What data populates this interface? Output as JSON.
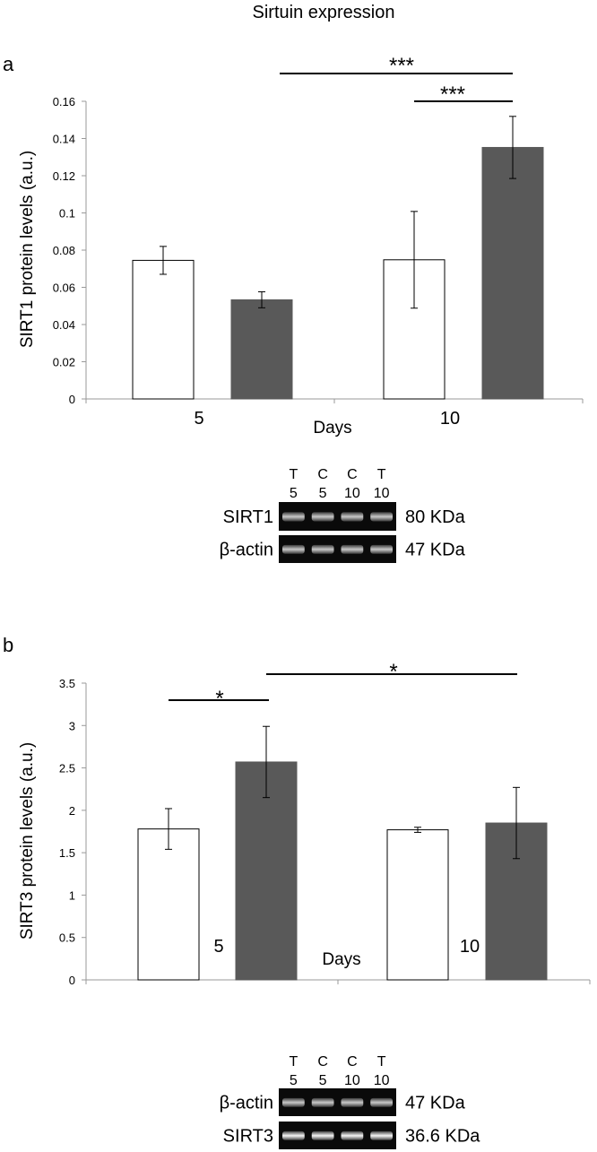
{
  "figure_title": "Sirtuin expression",
  "chart_data": [
    {
      "type": "bar",
      "panel": "a",
      "categories": [
        "5",
        "10"
      ],
      "xlabel": "Days",
      "ylabel": "SIRT1 protein levels (a.u.)",
      "ylim": [
        0,
        0.16
      ],
      "yticks": [
        0,
        0.02,
        0.04,
        0.06,
        0.08,
        0.1,
        0.12,
        0.14,
        0.16
      ],
      "ytick_labels": [
        "0",
        "0.02",
        "0.04",
        "0.06",
        "0.08",
        "0.1",
        "0.12",
        "0.14",
        "0.16"
      ],
      "series": [
        {
          "name": "white",
          "color": "#ffffff",
          "values": [
            0.0745,
            0.0748
          ],
          "errors": [
            0.0075,
            0.026
          ]
        },
        {
          "name": "dark",
          "color": "#595959",
          "values": [
            0.0533,
            0.1352
          ],
          "errors": [
            0.0043,
            0.0167
          ]
        }
      ],
      "significance": [
        {
          "label": "***",
          "from": "dark-5",
          "to": "dark-10"
        },
        {
          "label": "***",
          "from": "white-10",
          "to": "dark-10"
        }
      ],
      "blot": {
        "lanes": [
          {
            "top": "T",
            "bottom": "5"
          },
          {
            "top": "C",
            "bottom": "5"
          },
          {
            "top": "C",
            "bottom": "10"
          },
          {
            "top": "T",
            "bottom": "10"
          }
        ],
        "rows": [
          {
            "name": "SIRT1",
            "size": "80 KDa"
          },
          {
            "name": "β-actin",
            "size": "47 KDa"
          }
        ]
      }
    },
    {
      "type": "bar",
      "panel": "b",
      "categories": [
        "5",
        "10"
      ],
      "xlabel": "Days",
      "ylabel": "SIRT3 protein levels (a.u.)",
      "ylim": [
        0,
        3.5
      ],
      "yticks": [
        0,
        0.5,
        1,
        1.5,
        2,
        2.5,
        3,
        3.5
      ],
      "ytick_labels": [
        "0",
        "0.5",
        "1",
        "1.5",
        "2",
        "2.5",
        "3",
        "3.5"
      ],
      "series": [
        {
          "name": "white",
          "color": "#ffffff",
          "values": [
            1.78,
            1.77
          ],
          "errors": [
            0.24,
            0.03
          ]
        },
        {
          "name": "dark",
          "color": "#595959",
          "values": [
            2.57,
            1.85
          ],
          "errors": [
            0.42,
            0.42
          ]
        }
      ],
      "significance": [
        {
          "label": "*",
          "from": "white-5",
          "to": "dark-5"
        },
        {
          "label": "*",
          "from": "dark-5",
          "to": "dark-10"
        }
      ],
      "blot": {
        "lanes": [
          {
            "top": "T",
            "bottom": "5"
          },
          {
            "top": "C",
            "bottom": "5"
          },
          {
            "top": "C",
            "bottom": "10"
          },
          {
            "top": "T",
            "bottom": "10"
          }
        ],
        "rows": [
          {
            "name": "β-actin",
            "size": "47 KDa"
          },
          {
            "name": "SIRT3",
            "size": "36.6 KDa"
          }
        ]
      }
    }
  ]
}
